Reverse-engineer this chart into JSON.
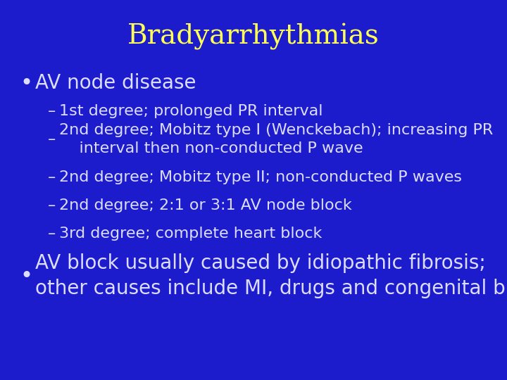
{
  "title": "Bradyarrhythmias",
  "title_color": "#FFFF55",
  "title_fontsize": 28,
  "background_color": "#1C1CCC",
  "bullet1": "AV node disease",
  "bullet1_color": "#DDDDFF",
  "bullet1_fontsize": 20,
  "sub_bullets": [
    "1st degree; prolonged PR interval",
    "2nd degree; Mobitz type I (Wenckebach); increasing PR\n    interval then non-conducted P wave",
    "2nd degree; Mobitz type II; non-conducted P waves",
    "2nd degree; 2:1 or 3:1 AV node block",
    "3rd degree; complete heart block"
  ],
  "sub_bullet_color": "#DDDDFF",
  "sub_bullet_fontsize": 16,
  "bullet2_line1": "AV block usually caused by idiopathic fibrosis;",
  "bullet2_line2": "other causes include MI, drugs and congenital block",
  "bullet2_color": "#DDDDFF",
  "bullet2_fontsize": 20
}
